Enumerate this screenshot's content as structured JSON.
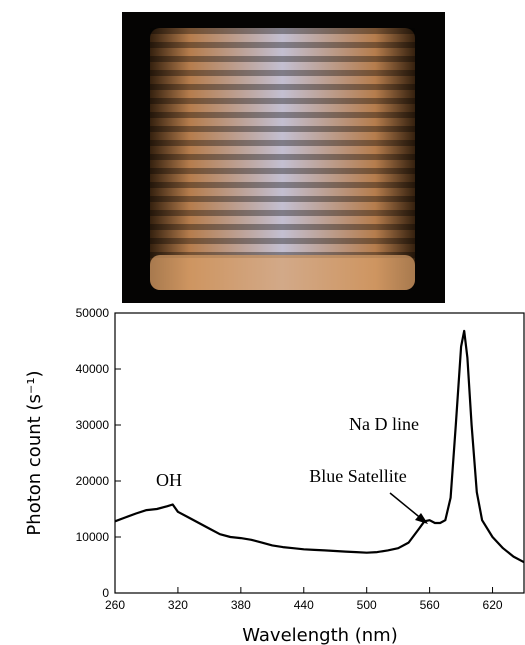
{
  "chart_data": {
    "type": "line",
    "xlabel": "Wavelength (nm)",
    "ylabel": "Photon count (s⁻¹)",
    "annotations": [
      "OH",
      "Na D line",
      "Blue Satellite"
    ],
    "color": "#000000",
    "x": [
      260,
      270,
      280,
      290,
      300,
      310,
      315,
      320,
      330,
      340,
      350,
      360,
      370,
      380,
      390,
      400,
      410,
      420,
      430,
      440,
      450,
      460,
      470,
      480,
      490,
      500,
      510,
      520,
      530,
      540,
      550,
      555,
      560,
      565,
      570,
      575,
      580,
      585,
      590,
      593,
      596,
      600,
      605,
      610,
      620,
      630,
      640,
      650
    ],
    "values": [
      12800,
      13500,
      14200,
      14800,
      15000,
      15500,
      15800,
      14500,
      13500,
      12500,
      11500,
      10500,
      10000,
      9800,
      9500,
      9000,
      8500,
      8200,
      8000,
      7800,
      7700,
      7600,
      7500,
      7400,
      7300,
      7200,
      7300,
      7600,
      8000,
      9000,
      11500,
      12800,
      13000,
      12500,
      12500,
      13000,
      17000,
      30000,
      44000,
      46800,
      42000,
      30000,
      18000,
      13000,
      10000,
      8000,
      6500,
      5500
    ],
    "xlim": [
      260,
      650
    ],
    "xticks": [
      260,
      320,
      380,
      440,
      500,
      560,
      620
    ],
    "ylim": [
      0,
      50000
    ],
    "yticks": [
      0,
      10000,
      20000,
      30000,
      40000,
      50000
    ]
  }
}
